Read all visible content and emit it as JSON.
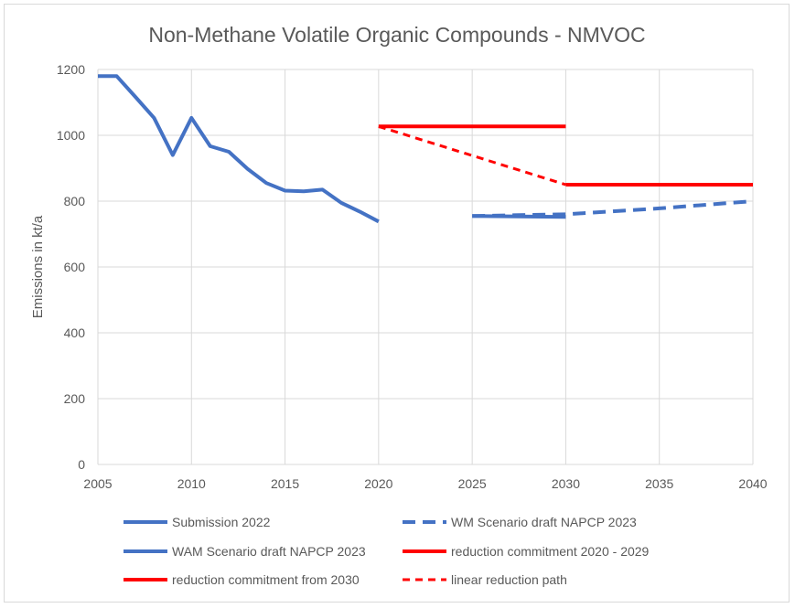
{
  "chart_data": {
    "type": "line",
    "title": "Non-Methane Volatile Organic Compounds - NMVOC",
    "xlabel": "",
    "ylabel": "Emissions in kt/a",
    "xlim": [
      2005,
      2040
    ],
    "ylim": [
      0,
      1200
    ],
    "xticks": [
      2005,
      2010,
      2015,
      2020,
      2025,
      2030,
      2035,
      2040
    ],
    "yticks": [
      0,
      200,
      400,
      600,
      800,
      1000,
      1200
    ],
    "grid": true,
    "legend_position": "bottom",
    "series": [
      {
        "name": "Submission 2022",
        "color": "#4472c4",
        "dash": false,
        "x": [
          2005,
          2006,
          2007,
          2008,
          2009,
          2010,
          2011,
          2012,
          2013,
          2014,
          2015,
          2016,
          2017,
          2018,
          2019,
          2020
        ],
        "y": [
          1180,
          1180,
          1117,
          1053,
          940,
          1053,
          967,
          950,
          898,
          855,
          832,
          830,
          835,
          795,
          768,
          738
        ]
      },
      {
        "name": "WM Scenario draft NAPCP 2023",
        "color": "#4472c4",
        "dash": true,
        "x": [
          2025,
          2030,
          2035,
          2040
        ],
        "y": [
          755,
          760,
          778,
          800
        ]
      },
      {
        "name": "WAM Scenario draft NAPCP 2023",
        "color": "#4472c4",
        "dash": false,
        "x": [
          2025,
          2030
        ],
        "y": [
          755,
          752
        ]
      },
      {
        "name": "reduction commitment 2020 - 2029",
        "color": "#ff0000",
        "dash": false,
        "x": [
          2020,
          2030
        ],
        "y": [
          1027,
          1027
        ]
      },
      {
        "name": "reduction commitment from 2030",
        "color": "#ff0000",
        "dash": false,
        "x": [
          2030,
          2040
        ],
        "y": [
          850,
          850
        ]
      },
      {
        "name": "linear reduction path",
        "color": "#ff0000",
        "dash": true,
        "x": [
          2020,
          2030
        ],
        "y": [
          1027,
          850
        ]
      }
    ]
  }
}
